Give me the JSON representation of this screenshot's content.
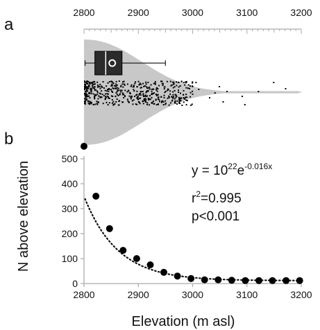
{
  "panels": {
    "a": {
      "letter": "a"
    },
    "b": {
      "letter": "b"
    }
  },
  "annotation": {
    "equation": {
      "prefix": "y = 10",
      "exponent_base": "22",
      "e": "e",
      "exponent": "-0.016x"
    },
    "r_squared": {
      "r": "r",
      "sup": "2",
      "value": "=0.995"
    },
    "p_value": "p<0.001"
  },
  "colors": {
    "violin_fill": "#c8c8c8",
    "box_fill": "#2b2b2b",
    "marker": "#000000",
    "axis": "#aaaaaa"
  },
  "chart_data": [
    {
      "panel": "a",
      "type": "violin",
      "xlim": [
        2800,
        3200
      ],
      "x_ticks": [
        2800,
        2900,
        3000,
        3100,
        3200
      ],
      "axis_position": "top",
      "box": {
        "whisker_low": 2802,
        "q1": 2820,
        "median": 2840,
        "q3": 2870,
        "mean": 2852,
        "whisker_high": 2950
      },
      "strip_summary": "dense jittered elevation points from about 2800 to 3000 m, sparse outliers up to about 3150 m"
    },
    {
      "panel": "b",
      "type": "scatter",
      "xlabel": "Elevation (m asl)",
      "ylabel": "N above elevation",
      "xlim": [
        2800,
        3200
      ],
      "ylim": [
        0,
        500
      ],
      "x_ticks": [
        2800,
        2900,
        3000,
        3100,
        3200
      ],
      "y_ticks": [
        0,
        100,
        200,
        300,
        400,
        500
      ],
      "points": [
        {
          "x": 2800,
          "y": 550
        },
        {
          "x": 2822,
          "y": 350
        },
        {
          "x": 2847,
          "y": 220
        },
        {
          "x": 2872,
          "y": 133
        },
        {
          "x": 2897,
          "y": 100
        },
        {
          "x": 2922,
          "y": 75
        },
        {
          "x": 2947,
          "y": 45
        },
        {
          "x": 2972,
          "y": 30
        },
        {
          "x": 2997,
          "y": 20
        },
        {
          "x": 3022,
          "y": 15
        },
        {
          "x": 3047,
          "y": 15
        },
        {
          "x": 3072,
          "y": 13
        },
        {
          "x": 3097,
          "y": 12
        },
        {
          "x": 3122,
          "y": 12
        },
        {
          "x": 3147,
          "y": 12
        },
        {
          "x": 3172,
          "y": 12
        },
        {
          "x": 3197,
          "y": 12
        }
      ],
      "fit": {
        "type": "exponential",
        "coefficient": 1e+22,
        "rate": -0.016,
        "style": "dotted"
      }
    }
  ]
}
